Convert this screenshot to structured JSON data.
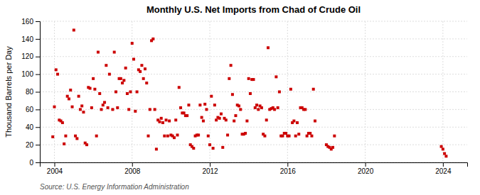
{
  "chart_data": {
    "type": "scatter",
    "title": "Monthly U.S. Net Imports from Chad of Crude Oil",
    "ylabel": "Thousand Barrels per Day",
    "annotation": "Source: U.S. Energy Information Administration",
    "color": "#cc0000",
    "marker": "square",
    "grid": true,
    "xlim": [
      2003.25,
      2025.25
    ],
    "ylim": [
      0,
      160
    ],
    "xticks": [
      2004,
      2008,
      2012,
      2016,
      2020,
      2024
    ],
    "yticks": [
      0,
      20,
      40,
      60,
      80,
      100,
      120,
      140,
      160
    ],
    "x": [
      2003.917,
      2004.0,
      2004.083,
      2004.167,
      2004.25,
      2004.333,
      2004.417,
      2004.5,
      2004.583,
      2004.667,
      2004.75,
      2004.833,
      2004.917,
      2005.0,
      2005.083,
      2005.167,
      2005.25,
      2005.333,
      2005.417,
      2005.5,
      2005.583,
      2005.667,
      2005.75,
      2005.833,
      2005.917,
      2006.0,
      2006.083,
      2006.167,
      2006.25,
      2006.333,
      2006.417,
      2006.5,
      2006.583,
      2006.667,
      2006.75,
      2006.833,
      2007.0,
      2007.083,
      2007.167,
      2007.25,
      2007.333,
      2007.417,
      2007.5,
      2007.583,
      2007.667,
      2007.75,
      2007.833,
      2007.917,
      2008.0,
      2008.083,
      2008.167,
      2008.25,
      2008.333,
      2008.417,
      2008.5,
      2008.583,
      2008.667,
      2008.75,
      2008.833,
      2008.917,
      2009.0,
      2009.083,
      2009.167,
      2009.25,
      2009.333,
      2009.417,
      2009.5,
      2009.583,
      2009.667,
      2009.75,
      2009.833,
      2009.917,
      2010.0,
      2010.083,
      2010.167,
      2010.25,
      2010.333,
      2010.417,
      2010.5,
      2010.583,
      2010.667,
      2010.75,
      2010.833,
      2010.917,
      2011.0,
      2011.083,
      2011.167,
      2011.25,
      2011.333,
      2011.417,
      2011.5,
      2011.583,
      2011.667,
      2011.75,
      2011.833,
      2011.917,
      2012.0,
      2012.083,
      2012.167,
      2012.25,
      2012.333,
      2012.417,
      2012.5,
      2012.583,
      2012.667,
      2012.75,
      2012.833,
      2012.917,
      2013.0,
      2013.083,
      2013.167,
      2013.25,
      2013.333,
      2013.417,
      2013.5,
      2013.583,
      2013.667,
      2013.75,
      2013.833,
      2013.917,
      2014.0,
      2014.083,
      2014.167,
      2014.25,
      2014.333,
      2014.417,
      2014.5,
      2014.583,
      2014.667,
      2014.75,
      2014.833,
      2014.917,
      2015.0,
      2015.083,
      2015.167,
      2015.25,
      2015.333,
      2015.417,
      2015.5,
      2015.583,
      2015.667,
      2015.75,
      2015.833,
      2015.917,
      2016.0,
      2016.083,
      2016.167,
      2016.25,
      2016.333,
      2016.417,
      2016.5,
      2016.583,
      2016.667,
      2016.75,
      2016.833,
      2016.917,
      2017.0,
      2017.083,
      2017.167,
      2017.25,
      2017.333,
      2017.417,
      2018.0,
      2018.083,
      2018.167,
      2018.25,
      2018.333,
      2018.417,
      2023.917,
      2024.0,
      2024.083,
      2024.167
    ],
    "values": [
      29,
      63,
      105,
      100,
      48,
      47,
      45,
      21,
      30,
      75,
      72,
      82,
      63,
      150,
      30,
      27,
      75,
      60,
      64,
      57,
      22,
      20,
      85,
      84,
      62,
      95,
      83,
      30,
      125,
      78,
      60,
      65,
      68,
      110,
      62,
      100,
      60,
      125,
      80,
      62,
      95,
      95,
      90,
      93,
      107,
      78,
      60,
      80,
      135,
      117,
      58,
      80,
      105,
      103,
      110,
      95,
      106,
      90,
      30,
      60,
      138,
      140,
      60,
      15,
      48,
      46,
      50,
      45,
      30,
      48,
      30,
      47,
      31,
      30,
      28,
      48,
      31,
      85,
      62,
      56,
      56,
      53,
      53,
      65,
      20,
      18,
      16,
      30,
      31,
      31,
      65,
      51,
      47,
      66,
      60,
      30,
      20,
      75,
      16,
      65,
      48,
      51,
      50,
      55,
      17,
      50,
      48,
      31,
      95,
      110,
      77,
      47,
      53,
      65,
      64,
      60,
      32,
      32,
      33,
      47,
      95,
      78,
      94,
      94,
      62,
      65,
      60,
      64,
      62,
      32,
      30,
      48,
      130,
      60,
      61,
      62,
      60,
      97,
      62,
      80,
      30,
      30,
      33,
      33,
      30,
      30,
      83,
      45,
      47,
      30,
      45,
      32,
      62,
      62,
      60,
      60,
      30,
      33,
      33,
      30,
      83,
      47,
      20,
      18,
      17,
      15,
      17,
      30,
      18,
      15,
      10,
      7
    ]
  }
}
